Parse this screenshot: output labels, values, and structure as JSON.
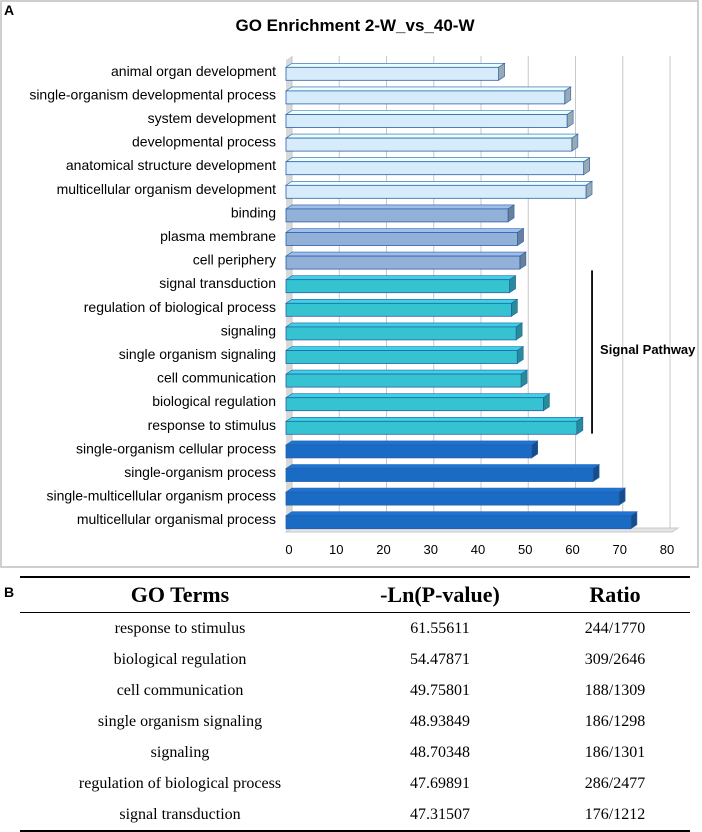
{
  "panel_labels": {
    "a": "A",
    "b": "B"
  },
  "colors": {
    "light": "#d6ecfb",
    "medium": "#93b0d8",
    "teal": "#35c3d2",
    "dark": "#1a6bc4",
    "outline": "#2a5fa8",
    "grid": "#c8c8c8"
  },
  "chart_data": {
    "type": "bar",
    "orientation": "horizontal",
    "title": "GO Enrichment 2-W_vs_40-W",
    "xlim": [
      0,
      80
    ],
    "xticks": [
      0,
      10,
      20,
      30,
      40,
      50,
      60,
      70,
      80
    ],
    "categories": [
      "animal organ development",
      "single-organism developmental process",
      "system development",
      "developmental process",
      "anatomical structure development",
      "multicellular organism development",
      "binding",
      "plasma membrane",
      "cell periphery",
      "signal transduction",
      "regulation of biological process",
      "signaling",
      "single organism signaling",
      "cell communication",
      "biological regulation",
      "response to stimulus",
      "single-organism cellular process",
      "single-organism process",
      "single-multicellular organism process",
      "multicellular organismal process"
    ],
    "values": [
      45,
      59,
      59.5,
      60.5,
      63,
      63.5,
      47,
      49,
      49.5,
      47.31507,
      47.69891,
      48.70348,
      48.93849,
      49.75801,
      54.47871,
      61.55611,
      52,
      65,
      70.5,
      73
    ],
    "groups": [
      "light",
      "light",
      "light",
      "light",
      "light",
      "light",
      "medium",
      "medium",
      "medium",
      "teal",
      "teal",
      "teal",
      "teal",
      "teal",
      "teal",
      "teal",
      "dark",
      "dark",
      "dark",
      "dark"
    ],
    "annotation": {
      "text": "Signal Pathway",
      "from": "signal transduction",
      "to": "response to stimulus"
    }
  },
  "table": {
    "headers": [
      "GO Terms",
      "-Ln(P-value)",
      "Ratio"
    ],
    "rows": [
      [
        "response to stimulus",
        "61.55611",
        "244/1770"
      ],
      [
        "biological regulation",
        "54.47871",
        "309/2646"
      ],
      [
        "cell communication",
        "49.75801",
        "188/1309"
      ],
      [
        "single organism signaling",
        "48.93849",
        "186/1298"
      ],
      [
        "signaling",
        "48.70348",
        "186/1301"
      ],
      [
        "regulation of biological process",
        "47.69891",
        "286/2477"
      ],
      [
        "signal transduction",
        "47.31507",
        "176/1212"
      ]
    ]
  }
}
